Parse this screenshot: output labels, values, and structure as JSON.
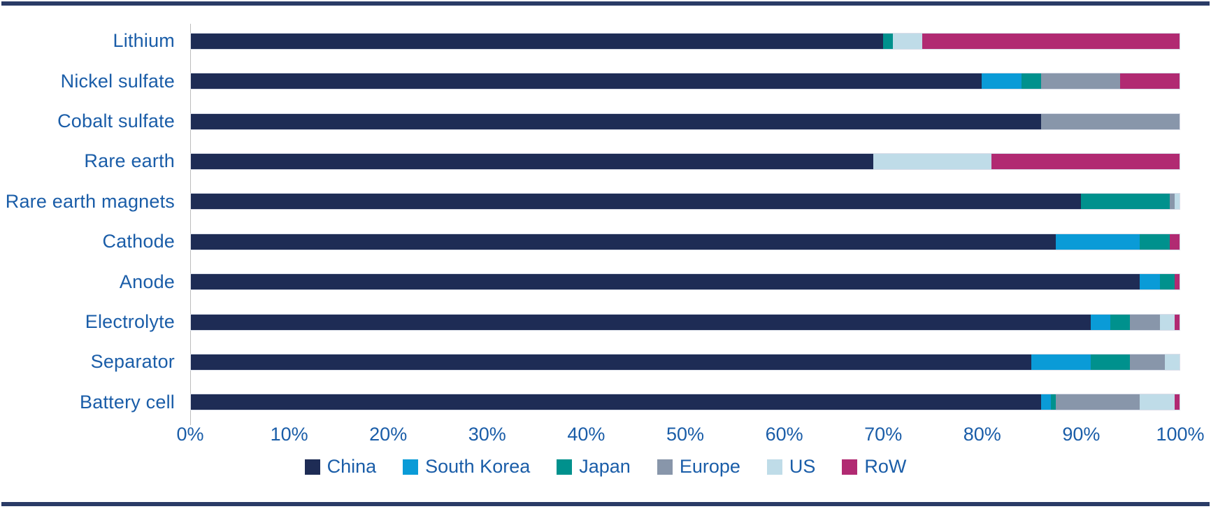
{
  "chart_data": {
    "type": "bar",
    "orientation": "horizontal",
    "stacked": true,
    "title": "",
    "xlabel": "",
    "ylabel": "",
    "xlim": [
      0,
      100
    ],
    "grid": false,
    "legend_position": "bottom",
    "x_ticks": [
      "0%",
      "10%",
      "20%",
      "30%",
      "40%",
      "50%",
      "60%",
      "70%",
      "80%",
      "90%",
      "100%"
    ],
    "categories": [
      "Lithium",
      "Nickel sulfate",
      "Cobalt sulfate",
      "Rare earth",
      "Rare earth magnets",
      "Cathode",
      "Anode",
      "Electrolyte",
      "Separator",
      "Battery cell"
    ],
    "series": [
      {
        "name": "China",
        "color": "#1E2C55",
        "values": [
          70,
          80,
          86,
          69,
          90,
          87.5,
          96,
          91,
          85,
          86
        ]
      },
      {
        "name": "South Korea",
        "color": "#0A9BD7",
        "values": [
          0,
          4,
          0,
          0,
          0,
          8.5,
          2,
          2,
          6,
          1
        ]
      },
      {
        "name": "Japan",
        "color": "#00918D",
        "values": [
          1,
          2,
          0,
          0,
          9,
          3,
          1.5,
          2,
          4,
          0.5
        ]
      },
      {
        "name": "Europe",
        "color": "#8896AA",
        "values": [
          0,
          8,
          14,
          0,
          0.5,
          0,
          0,
          3,
          3.5,
          8.5
        ]
      },
      {
        "name": "US",
        "color": "#BFDCE8",
        "values": [
          3,
          0,
          0,
          12,
          0.5,
          0,
          0,
          1.5,
          1.5,
          3.5
        ]
      },
      {
        "name": "RoW",
        "color": "#B12A72",
        "values": [
          26,
          6,
          0,
          19,
          0,
          1,
          0.5,
          0.5,
          0,
          0.5
        ]
      }
    ]
  },
  "styles": {
    "label_text_color": "#1A5DA8",
    "rule_color": "#2A3B66",
    "axis_line_color": "#BDBDBD",
    "bar_outline_color": "#DADEE9",
    "background_color": "#FFFFFF"
  }
}
